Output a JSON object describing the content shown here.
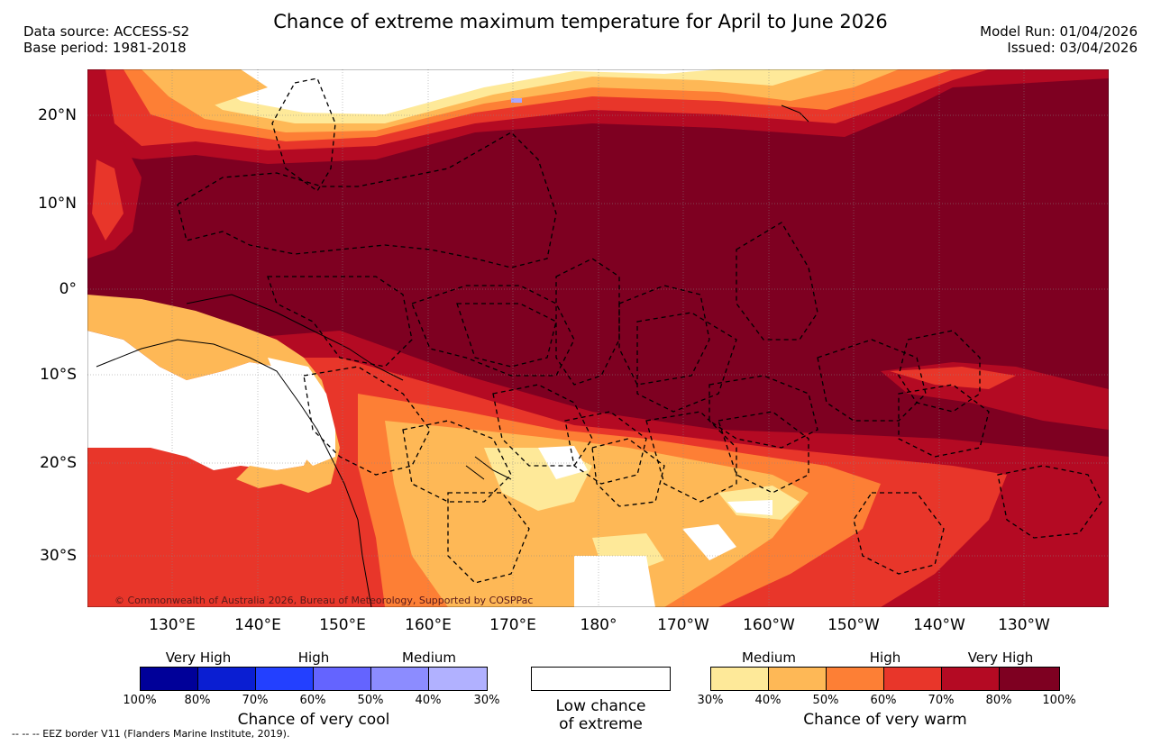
{
  "header": {
    "title": "Chance of extreme maximum temperature for April to June 2026",
    "data_source": "Data source: ACCESS-S2",
    "base_period": "Base period: 1981-2018",
    "model_run": "Model Run: 01/04/2026",
    "issued": "Issued: 03/04/2026"
  },
  "map": {
    "lat_labels": [
      "20°N",
      "10°N",
      "0°",
      "10°S",
      "20°S",
      "30°S"
    ],
    "lon_labels": [
      "130°E",
      "140°E",
      "150°E",
      "160°E",
      "170°E",
      "180°",
      "170°W",
      "160°W",
      "150°W",
      "140°W",
      "130°W"
    ],
    "copyright": "© Commonwealth of Australia 2026, Bureau of Meteorology, Supported by COSPPac",
    "colors": {
      "very_high_warm": "#7e0021",
      "warm_70_80": "#b40a23",
      "warm_60_70": "#e8362a",
      "warm_50_60": "#fd7f35",
      "warm_40_50": "#feb856",
      "warm_30_40": "#fee999",
      "low": "#ffffff",
      "cool_30_40": "#a6a6ff"
    }
  },
  "legend_cool": {
    "categories": [
      "Very High",
      "High",
      "Medium"
    ],
    "percentages": [
      "100%",
      "80%",
      "70%",
      "60%",
      "50%",
      "40%",
      "30%"
    ],
    "colors": [
      "#000099",
      "#0a1ed2",
      "#2340ff",
      "#6464ff",
      "#8c8cff",
      "#b1b1ff"
    ],
    "title": "Chance of very cool"
  },
  "legend_low": {
    "line1": "Low chance",
    "line2": "of extreme"
  },
  "legend_warm": {
    "categories": [
      "Medium",
      "High",
      "Very High"
    ],
    "percentages": [
      "30%",
      "40%",
      "50%",
      "60%",
      "70%",
      "80%",
      "100%"
    ],
    "colors": [
      "#fee999",
      "#feb856",
      "#fd7f35",
      "#e8362a",
      "#b40a23",
      "#7e0021"
    ],
    "title": "Chance of very warm"
  },
  "footnote": "--  --  -- EEZ border V11 (Flanders Marine Institute, 2019)."
}
